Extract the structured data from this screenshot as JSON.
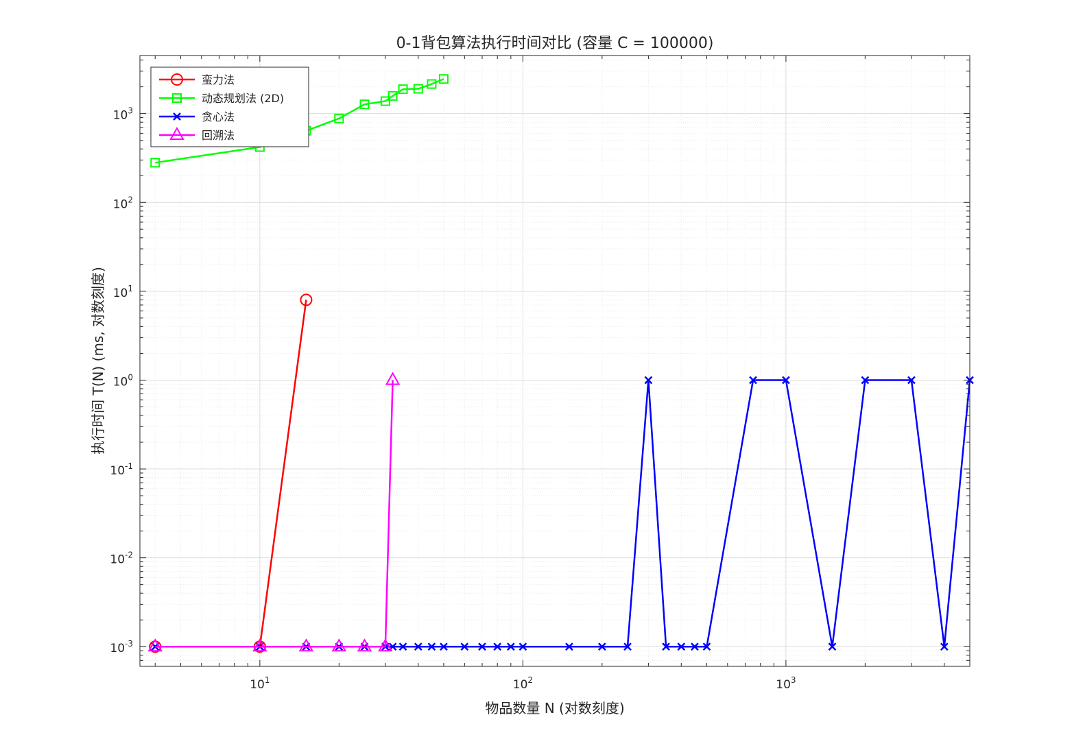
{
  "chart_data": {
    "type": "line",
    "title": "0-1背包算法执行时间对比 (容量 C = 100000)",
    "xlabel": "物品数量 N (对数刻度)",
    "ylabel": "执行时间 T(N) (ms, 对数刻度)",
    "xscale": "log",
    "yscale": "log",
    "xlim": [
      3.5,
      5000
    ],
    "ylim": [
      0.0006,
      4500
    ],
    "grid": true,
    "legend_position": "top-left",
    "x_ticks": [
      {
        "value": 10,
        "base": "10",
        "exp": "1"
      },
      {
        "value": 100,
        "base": "10",
        "exp": "2"
      },
      {
        "value": 1000,
        "base": "10",
        "exp": "3"
      }
    ],
    "y_ticks": [
      {
        "value": 0.001,
        "base": "10",
        "exp": "-3"
      },
      {
        "value": 0.01,
        "base": "10",
        "exp": "-2"
      },
      {
        "value": 0.1,
        "base": "10",
        "exp": "-1"
      },
      {
        "value": 1,
        "base": "10",
        "exp": "0"
      },
      {
        "value": 10,
        "base": "10",
        "exp": "1"
      },
      {
        "value": 100,
        "base": "10",
        "exp": "2"
      },
      {
        "value": 1000,
        "base": "10",
        "exp": "3"
      }
    ],
    "series": [
      {
        "name": "蛮力法",
        "color": "#ff0000",
        "marker": "circle",
        "x": [
          4,
          10,
          15
        ],
        "y": [
          0.001,
          0.001,
          8
        ]
      },
      {
        "name": "动态规划法 (2D)",
        "color": "#00ff00",
        "marker": "square",
        "x": [
          4,
          10,
          15,
          20,
          25,
          30,
          32,
          35,
          40,
          45,
          50
        ],
        "y": [
          280,
          420,
          640,
          880,
          1270,
          1380,
          1580,
          1880,
          1900,
          2150,
          2450
        ]
      },
      {
        "name": "贪心法",
        "color": "#0000ff",
        "marker": "x",
        "x": [
          4,
          10,
          15,
          20,
          25,
          30,
          32,
          35,
          40,
          45,
          50,
          60,
          70,
          80,
          90,
          100,
          150,
          200,
          250,
          300,
          350,
          400,
          450,
          500,
          750,
          1000,
          1500,
          2000,
          3000,
          4000,
          5000
        ],
        "y": [
          0.001,
          0.001,
          0.001,
          0.001,
          0.001,
          0.001,
          0.001,
          0.001,
          0.001,
          0.001,
          0.001,
          0.001,
          0.001,
          0.001,
          0.001,
          0.001,
          0.001,
          0.001,
          0.001,
          1,
          0.001,
          0.001,
          0.001,
          0.001,
          1,
          1,
          0.001,
          1,
          1,
          0.001,
          1
        ]
      },
      {
        "name": "回溯法",
        "color": "#ff00ff",
        "marker": "triangle",
        "x": [
          4,
          10,
          15,
          20,
          25,
          30,
          32
        ],
        "y": [
          0.001,
          0.001,
          0.001,
          0.001,
          0.001,
          0.001,
          1
        ]
      }
    ]
  }
}
